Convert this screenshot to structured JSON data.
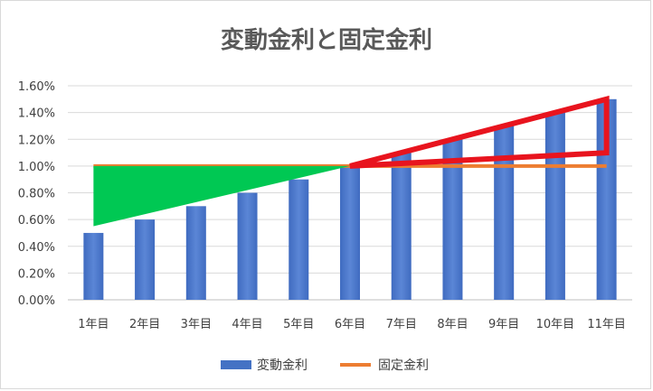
{
  "chart_data": {
    "type": "bar",
    "title": "変動金利と固定金利",
    "categories": [
      "1年目",
      "2年目",
      "3年目",
      "4年目",
      "5年目",
      "6年目",
      "7年目",
      "8年目",
      "9年目",
      "10年目",
      "11年目"
    ],
    "series": [
      {
        "name": "変動金利",
        "type": "bar",
        "values": [
          0.5,
          0.6,
          0.7,
          0.8,
          0.9,
          1.0,
          1.1,
          1.2,
          1.3,
          1.4,
          1.5
        ],
        "color": "#4472c4"
      },
      {
        "name": "固定金利",
        "type": "line",
        "values": [
          1.0,
          1.0,
          1.0,
          1.0,
          1.0,
          1.0,
          1.0,
          1.0,
          1.0,
          1.0,
          1.0
        ],
        "color": "#ed7d31"
      }
    ],
    "y_ticks": [
      "0.00%",
      "0.20%",
      "0.40%",
      "0.60%",
      "0.80%",
      "1.00%",
      "1.20%",
      "1.40%",
      "1.60%"
    ],
    "ylim": [
      0,
      1.6
    ],
    "y_unit": "%",
    "grid": true,
    "legend_position": "bottom",
    "annotations": [
      {
        "shape": "triangle",
        "fill": "#00c853",
        "meaning": "savings while variable rate is below fixed",
        "points": [
          [
            1,
            0.55
          ],
          [
            1,
            1.0
          ],
          [
            6,
            1.0
          ]
        ]
      },
      {
        "shape": "triangle-outline",
        "stroke": "#e8141e",
        "meaning": "extra cost once variable rate exceeds fixed",
        "points": [
          [
            6,
            1.0
          ],
          [
            11,
            1.5
          ],
          [
            11,
            1.1
          ],
          [
            11.05,
            1.1
          ]
        ]
      }
    ]
  }
}
